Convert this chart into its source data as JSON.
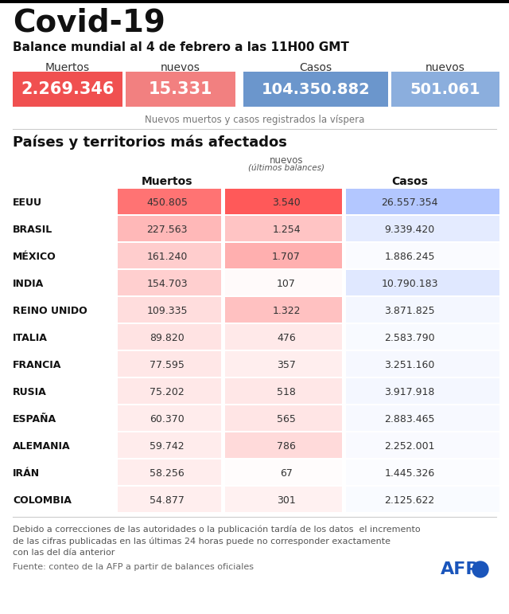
{
  "title": "Covid-19",
  "subtitle": "Balance mundial al 4 de febrero a las 11H00 GMT",
  "global_labels": [
    "Muertos",
    "nuevos",
    "Casos",
    "nuevos"
  ],
  "global_values": [
    "2.269.346",
    "15.331",
    "104.350.882",
    "501.061"
  ],
  "subtitle_note": "Nuevos muertos y casos registrados la víspera",
  "section_title": "Países y territorios más afectados",
  "countries": [
    "EEUU",
    "BRASIL",
    "MÉXICO",
    "INDIA",
    "REINO UNIDO",
    "ITALIA",
    "FRANCIA",
    "RUSIA",
    "ESPAÑA",
    "ALEMANIA",
    "IRÁN",
    "COLOMBIA"
  ],
  "muertos": [
    "450.805",
    "227.563",
    "161.240",
    "154.703",
    "109.335",
    "89.820",
    "77.595",
    "75.202",
    "60.370",
    "59.742",
    "58.256",
    "54.877"
  ],
  "nuevos": [
    "3.540",
    "1.254",
    "1.707",
    "107",
    "1.322",
    "476",
    "357",
    "518",
    "565",
    "786",
    "67",
    "301"
  ],
  "casos": [
    "26.557.354",
    "9.339.420",
    "1.886.245",
    "10.790.183",
    "3.871.825",
    "2.583.790",
    "3.251.160",
    "3.917.918",
    "2.883.465",
    "2.252.001",
    "1.445.326",
    "2.125.622"
  ],
  "nuevos_raw": [
    3540,
    1254,
    1707,
    107,
    1322,
    476,
    357,
    518,
    565,
    786,
    67,
    301
  ],
  "muertos_raw": [
    450805,
    227563,
    161240,
    154703,
    109335,
    89820,
    77595,
    75202,
    60370,
    59742,
    58256,
    54877
  ],
  "casos_raw": [
    26557354,
    9339420,
    1886245,
    10790183,
    3871825,
    2583790,
    3251160,
    3917918,
    2883465,
    2252001,
    1445326,
    2125622
  ],
  "disclaimer": "Debido a correcciones de las autoridades o la publicación tardía de los datos  el incremento\nde las cifras publicadas en las últimas 24 horas puede no corresponder exactamente\ncon las del día anterior",
  "source": "Fuente: conteo de la AFP a partir de balances oficiales",
  "bg_color": "#ffffff",
  "red_strong": "#f05050",
  "red_medium": "#f28080",
  "blue_strong": "#6b96cc",
  "blue_medium": "#8baedd",
  "afp_blue": "#1a55bb"
}
